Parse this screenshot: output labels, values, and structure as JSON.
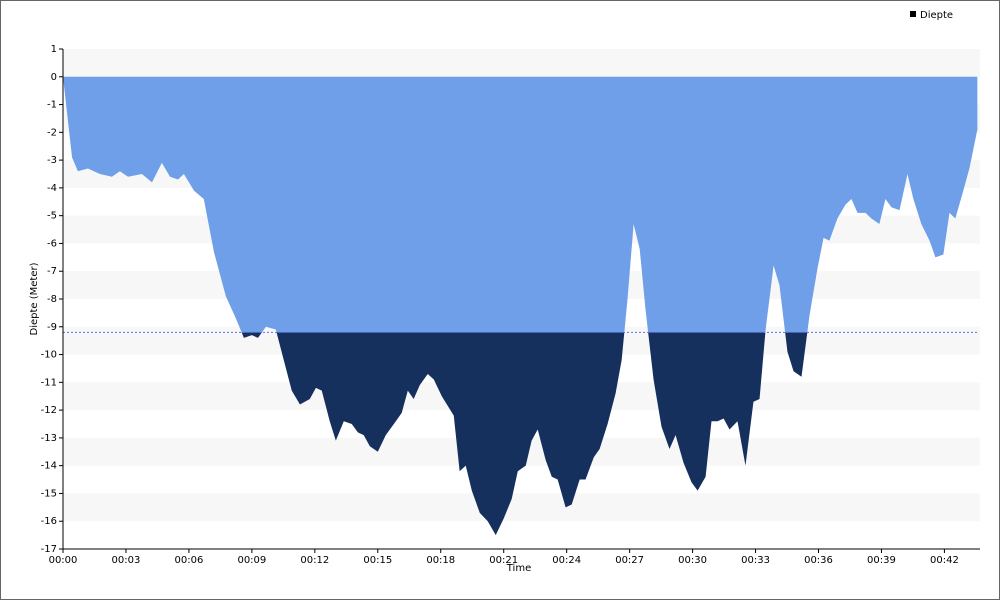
{
  "chart_data": {
    "type": "area",
    "x_label": "Time",
    "y_label": "Diepte (Meter)",
    "x": [
      0,
      0.43,
      0.71,
      1.19,
      1.76,
      2.33,
      2.71,
      3.1,
      3.76,
      4.24,
      4.71,
      5.1,
      5.48,
      5.76,
      6.24,
      6.71,
      7.19,
      7.76,
      8.24,
      8.62,
      9.0,
      9.29,
      9.67,
      10.14,
      10.52,
      10.9,
      11.29,
      11.76,
      12.05,
      12.33,
      12.71,
      13.0,
      13.38,
      13.76,
      14.05,
      14.33,
      14.62,
      15.0,
      15.38,
      15.86,
      16.14,
      16.43,
      16.71,
      17.0,
      17.38,
      17.67,
      18.05,
      18.62,
      18.9,
      19.19,
      19.48,
      19.86,
      20.24,
      20.62,
      21.0,
      21.38,
      21.67,
      22.05,
      22.33,
      22.62,
      23.0,
      23.29,
      23.57,
      23.95,
      24.24,
      24.62,
      24.9,
      25.29,
      25.57,
      25.95,
      26.33,
      26.62,
      26.9,
      27.19,
      27.48,
      27.76,
      28.14,
      28.52,
      28.9,
      29.19,
      29.57,
      29.95,
      30.24,
      30.62,
      30.9,
      31.19,
      31.48,
      31.76,
      32.14,
      32.52,
      32.9,
      33.19,
      33.48,
      33.86,
      34.14,
      34.52,
      34.81,
      35.19,
      35.57,
      35.95,
      36.24,
      36.52,
      36.9,
      37.29,
      37.57,
      37.86,
      38.24,
      38.52,
      38.9,
      39.19,
      39.48,
      39.86,
      40.24,
      40.52,
      40.9,
      41.29,
      41.57,
      41.95,
      42.24,
      42.52,
      42.9,
      43.19,
      43.57
    ],
    "series": [
      {
        "name": "Diepte",
        "color": "#6f9fe8",
        "below_color": "#16305e",
        "values": [
          0,
          -2.9,
          -3.4,
          -3.3,
          -3.5,
          -3.6,
          -3.4,
          -3.6,
          -3.5,
          -3.8,
          -3.1,
          -3.6,
          -3.7,
          -3.5,
          -4.1,
          -4.4,
          -6.3,
          -7.9,
          -8.7,
          -9.4,
          -9.3,
          -9.4,
          -9.0,
          -9.1,
          -10.2,
          -11.3,
          -11.8,
          -11.6,
          -11.2,
          -11.3,
          -12.4,
          -13.1,
          -12.4,
          -12.5,
          -12.8,
          -12.9,
          -13.3,
          -13.5,
          -12.9,
          -12.4,
          -12.1,
          -11.3,
          -11.6,
          -11.1,
          -10.7,
          -10.9,
          -11.5,
          -12.2,
          -14.2,
          -14.0,
          -14.9,
          -15.7,
          -16.0,
          -16.5,
          -15.9,
          -15.2,
          -14.2,
          -14.0,
          -13.1,
          -12.7,
          -13.8,
          -14.4,
          -14.5,
          -15.5,
          -15.4,
          -14.5,
          -14.5,
          -13.7,
          -13.4,
          -12.5,
          -11.4,
          -10.2,
          -8.0,
          -5.3,
          -6.2,
          -8.4,
          -10.9,
          -12.6,
          -13.4,
          -12.9,
          -13.9,
          -14.6,
          -14.9,
          -14.4,
          -12.4,
          -12.4,
          -12.3,
          -12.7,
          -12.4,
          -14.0,
          -11.7,
          -11.6,
          -9.1,
          -6.8,
          -7.5,
          -9.9,
          -10.6,
          -10.8,
          -8.6,
          -6.9,
          -5.8,
          -5.9,
          -5.1,
          -4.6,
          -4.4,
          -4.9,
          -4.9,
          -5.1,
          -5.3,
          -4.4,
          -4.7,
          -4.8,
          -3.5,
          -4.4,
          -5.3,
          -5.9,
          -6.5,
          -6.4,
          -4.9,
          -5.1,
          -4.1,
          -3.3,
          -1.9
        ]
      }
    ],
    "threshold": -9.2,
    "threshold_color": "#5b6ee8",
    "xlim": [
      0,
      43.6
    ],
    "xticks": [
      {
        "value": 0,
        "label": "00:00"
      },
      {
        "value": 3,
        "label": "00:03"
      },
      {
        "value": 6,
        "label": "00:06"
      },
      {
        "value": 9,
        "label": "00:09"
      },
      {
        "value": 12,
        "label": "00:12"
      },
      {
        "value": 15,
        "label": "00:15"
      },
      {
        "value": 18,
        "label": "00:18"
      },
      {
        "value": 21,
        "label": "00:21"
      },
      {
        "value": 24,
        "label": "00:24"
      },
      {
        "value": 27,
        "label": "00:27"
      },
      {
        "value": 30,
        "label": "00:30"
      },
      {
        "value": 33,
        "label": "00:33"
      },
      {
        "value": 36,
        "label": "00:36"
      },
      {
        "value": 39,
        "label": "00:39"
      },
      {
        "value": 42,
        "label": "00:42"
      }
    ],
    "ylim": [
      -17,
      1
    ],
    "yticks": [
      1,
      0,
      -1,
      -2,
      -3,
      -4,
      -5,
      -6,
      -7,
      -8,
      -9,
      -10,
      -11,
      -12,
      -13,
      -14,
      -15,
      -16,
      -17
    ]
  }
}
